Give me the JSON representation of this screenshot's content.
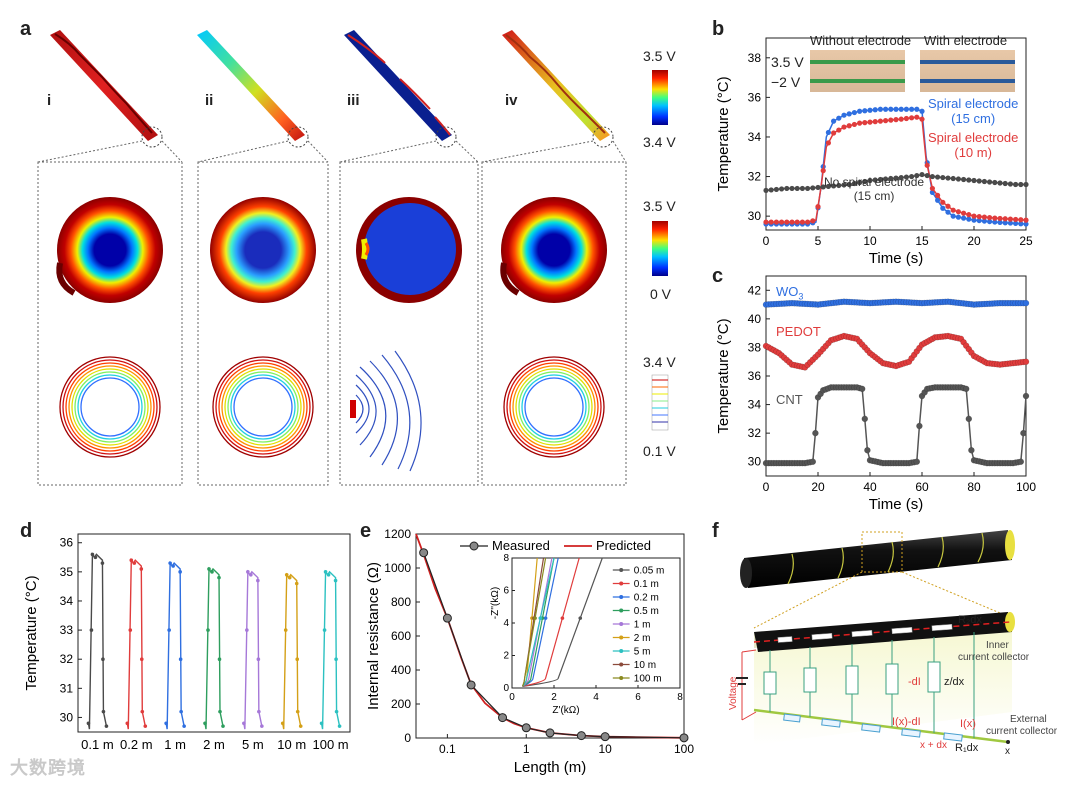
{
  "panels": {
    "a": "a",
    "b": "b",
    "c": "c",
    "d": "d",
    "e": "e",
    "f": "f"
  },
  "panel_a": {
    "sublabels": [
      "i",
      "ii",
      "iii",
      "iv"
    ],
    "colorbar_top": {
      "max": "3.5 V",
      "min": "3.4 V"
    },
    "colorbar_mid": {
      "max": "3.5 V",
      "min": "0 V"
    },
    "colorbar_bot": {
      "max": "3.4 V",
      "min": "0.1 V"
    }
  },
  "panel_b": {
    "inset_left_title": "Without electrode",
    "inset_right_title": "With electrode",
    "voltage_hi": "3.5 V",
    "voltage_lo": "−2 V",
    "spiral15_l1": "Spiral electrode",
    "spiral15_l2": "(15 cm)",
    "spiral10_l1": "Spiral electrode",
    "spiral10_l2": "(10 m)",
    "none_l1": "No spiral electrode",
    "none_l2": "(15 cm)"
  },
  "panel_c": {
    "wo3": "WO",
    "wo3_sub": "3",
    "pedot": "PEDOT",
    "cnt": "CNT"
  },
  "panel_e_inset": {
    "xlabel": "Z'(kΩ)",
    "ylabel": "-Z''(kΩ)"
  },
  "panel_f": {
    "r2": "R₂dx",
    "inner": "Inner",
    "inner2": "current collector",
    "voltage": "Voltage",
    "dI": "-dI",
    "zdx": "z/dx",
    "ixdi": "I(x)-dI",
    "ix": "I(x)",
    "external": "External",
    "external2": "current collector",
    "xdx": "x + dx",
    "r1": "R₁dx",
    "x": "x"
  },
  "watermark": "大数跨境",
  "chart_data": [
    {
      "id": "b",
      "type": "line",
      "xlabel": "Time (s)",
      "ylabel": "Temperature (°C)",
      "xlim": [
        0,
        25
      ],
      "ylim": [
        29.3,
        39
      ],
      "xticks": [
        0,
        5,
        10,
        15,
        20,
        25
      ],
      "yticks": [
        30,
        32,
        34,
        36,
        38
      ],
      "series": [
        {
          "name": "Spiral electrode (15 cm)",
          "color": "#2f6fe0",
          "x": [
            0,
            1,
            2,
            3,
            4,
            4.8,
            5.3,
            5.8,
            6.5,
            7.5,
            9,
            11,
            13,
            14.5,
            15,
            15.4,
            16,
            17,
            18,
            20,
            22,
            25
          ],
          "y": [
            29.6,
            29.6,
            29.6,
            29.6,
            29.6,
            29.7,
            31.5,
            34.0,
            34.8,
            35.1,
            35.3,
            35.4,
            35.4,
            35.4,
            35.3,
            33.0,
            31.2,
            30.4,
            30.0,
            29.8,
            29.7,
            29.6
          ]
        },
        {
          "name": "Spiral electrode (10 m)",
          "color": "#e03c3c",
          "x": [
            0,
            1,
            2,
            3,
            4,
            4.8,
            5.3,
            5.8,
            6.5,
            7.5,
            9,
            11,
            13,
            14.5,
            15,
            15.4,
            16,
            17,
            18,
            20,
            22,
            25
          ],
          "y": [
            29.7,
            29.7,
            29.7,
            29.7,
            29.7,
            29.8,
            31.5,
            33.5,
            34.2,
            34.5,
            34.7,
            34.8,
            34.9,
            35.0,
            34.9,
            32.8,
            31.4,
            30.7,
            30.3,
            30.0,
            29.9,
            29.8
          ]
        },
        {
          "name": "No spiral electrode (15 cm)",
          "color": "#4a4a4a",
          "x": [
            0,
            2,
            4,
            6,
            8,
            10,
            12,
            14,
            15,
            16,
            18,
            20,
            22,
            24,
            25
          ],
          "y": [
            31.3,
            31.4,
            31.4,
            31.5,
            31.6,
            31.8,
            31.9,
            32.0,
            32.1,
            32.0,
            31.9,
            31.8,
            31.7,
            31.6,
            31.6
          ]
        }
      ]
    },
    {
      "id": "c",
      "type": "line",
      "xlabel": "Time (s)",
      "ylabel": "Temperature (°C)",
      "xlim": [
        0,
        100
      ],
      "ylim": [
        29,
        43
      ],
      "xticks": [
        0,
        20,
        40,
        60,
        80,
        100
      ],
      "yticks": [
        30,
        32,
        34,
        36,
        38,
        40,
        42
      ],
      "series": [
        {
          "name": "WO3",
          "color": "#2f6fe0",
          "x": [
            0,
            10,
            20,
            30,
            40,
            50,
            60,
            70,
            80,
            90,
            100
          ],
          "y": [
            41.0,
            41.1,
            41.0,
            41.2,
            41.1,
            41.2,
            41.1,
            41.2,
            41.0,
            41.1,
            41.1
          ]
        },
        {
          "name": "PEDOT",
          "color": "#e03c3c",
          "x": [
            0,
            5,
            10,
            15,
            20,
            25,
            30,
            35,
            40,
            45,
            50,
            55,
            60,
            65,
            70,
            75,
            80,
            85,
            90,
            95,
            100
          ],
          "y": [
            38.1,
            37.6,
            36.8,
            36.6,
            37.5,
            38.5,
            38.8,
            38.6,
            37.6,
            36.9,
            36.7,
            37.0,
            38.2,
            38.7,
            38.8,
            38.6,
            37.4,
            36.9,
            36.8,
            36.9,
            37.0
          ]
        },
        {
          "name": "CNT",
          "color": "#555555",
          "x": [
            0,
            5,
            10,
            15,
            18,
            19,
            20,
            22,
            25,
            30,
            35,
            37,
            38,
            39,
            40,
            45,
            50,
            55,
            58,
            59,
            60,
            62,
            65,
            70,
            75,
            77,
            78,
            79,
            80,
            85,
            90,
            95,
            98,
            99,
            100
          ],
          "y": [
            29.9,
            29.9,
            29.9,
            29.9,
            30.0,
            32.0,
            34.5,
            35.0,
            35.2,
            35.2,
            35.2,
            35.1,
            33.0,
            30.8,
            30.1,
            29.9,
            29.9,
            29.9,
            30.0,
            32.5,
            34.6,
            35.1,
            35.2,
            35.2,
            35.2,
            35.1,
            33.0,
            30.8,
            30.1,
            29.9,
            29.9,
            29.9,
            30.0,
            32.0,
            34.6
          ]
        }
      ]
    },
    {
      "id": "d",
      "type": "line",
      "ylabel": "Temperature (°C)",
      "ylim": [
        29.5,
        36.3
      ],
      "yticks": [
        30,
        31,
        32,
        33,
        34,
        35,
        36
      ],
      "categories": [
        "0.1 m",
        "0.2 m",
        "1 m",
        "2 m",
        "5 m",
        "10 m",
        "100 m"
      ],
      "series": [
        {
          "name": "0.1 m",
          "color": "#4a4a4a",
          "peak": 35.6
        },
        {
          "name": "0.2 m",
          "color": "#e03c3c",
          "peak": 35.4
        },
        {
          "name": "1 m",
          "color": "#2f6fe0",
          "peak": 35.3
        },
        {
          "name": "2 m",
          "color": "#2e9e5e",
          "peak": 35.1
        },
        {
          "name": "5 m",
          "color": "#a678d8",
          "peak": 35.0
        },
        {
          "name": "10 m",
          "color": "#d4a017",
          "peak": 34.9
        },
        {
          "name": "100 m",
          "color": "#2cc1c1",
          "peak": 35.0
        }
      ]
    },
    {
      "id": "e",
      "type": "scatter",
      "xlabel": "Length (m)",
      "ylabel": "Internal resistance (Ω)",
      "xscale": "log",
      "xlim": [
        0.04,
        100
      ],
      "ylim": [
        0,
        1200
      ],
      "xticks": [
        0.1,
        1,
        10,
        100
      ],
      "xticklabels": [
        "0.1",
        "1",
        "10",
        "100"
      ],
      "yticks": [
        0,
        200,
        400,
        600,
        800,
        1000,
        1200
      ],
      "legend": [
        "Measured",
        "Predicted"
      ],
      "measured": {
        "x": [
          0.05,
          0.1,
          0.2,
          0.5,
          1,
          2,
          5,
          10,
          100
        ],
        "y": [
          1090,
          705,
          312,
          120,
          60,
          30,
          14,
          8,
          1
        ]
      },
      "predicted": {
        "x": [
          0.04,
          0.05,
          0.07,
          0.1,
          0.15,
          0.2,
          0.3,
          0.5,
          0.7,
          1,
          2,
          5,
          10,
          100
        ],
        "y": [
          1200,
          1080,
          880,
          705,
          470,
          315,
          205,
          120,
          85,
          60,
          30,
          14,
          8,
          1
        ]
      }
    },
    {
      "id": "e_inset",
      "type": "line",
      "xlabel": "Z'(kΩ)",
      "ylabel": "-Z''(kΩ)",
      "xlim": [
        0,
        8
      ],
      "ylim": [
        0,
        8
      ],
      "xticks": [
        0,
        2,
        4,
        6,
        8
      ],
      "yticks": [
        0,
        2,
        4,
        6,
        8
      ],
      "series": [
        {
          "name": "0.05 m",
          "color": "#555555",
          "x0": 2.2,
          "x1": 4.3
        },
        {
          "name": "0.1 m",
          "color": "#e03c3c",
          "x0": 1.6,
          "x1": 3.2
        },
        {
          "name": "0.2 m",
          "color": "#2f6fe0",
          "x0": 1.0,
          "x1": 2.2
        },
        {
          "name": "0.5 m",
          "color": "#2e9e5e",
          "x0": 0.9,
          "x1": 2.0
        },
        {
          "name": "1 m",
          "color": "#a678d8",
          "x0": 0.8,
          "x1": 1.9
        },
        {
          "name": "2 m",
          "color": "#d4a017",
          "x0": 0.7,
          "x1": 1.2
        },
        {
          "name": "5 m",
          "color": "#2cc1c1",
          "x0": 0.7,
          "x1": 2.0
        },
        {
          "name": "10 m",
          "color": "#8b4a3a",
          "x0": 0.6,
          "x1": 1.5
        },
        {
          "name": "100 m",
          "color": "#8a8a20",
          "x0": 0.6,
          "x1": 1.6
        }
      ]
    }
  ]
}
